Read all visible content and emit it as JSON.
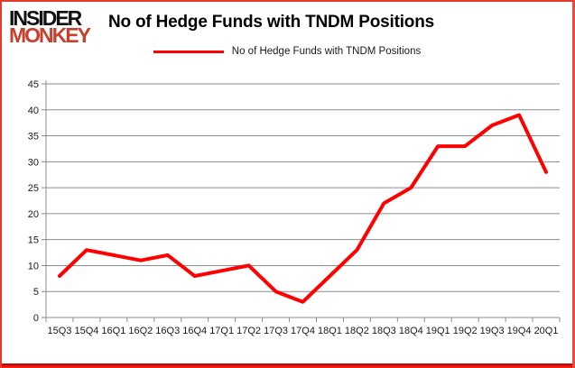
{
  "logo": {
    "line1": "INSIDER",
    "line2": "MONKEY",
    "line1_color": "#111111",
    "line2_color": "#c7402e"
  },
  "header": {
    "title": "No of Hedge Funds with TNDM Positions"
  },
  "legend": {
    "label": "No of Hedge Funds with TNDM Positions",
    "line_color": "#ff0000"
  },
  "colors": {
    "series_red": "#ff0000",
    "gridline_gray": "#8c8c8c",
    "axis_gray": "#8c8c8c",
    "frame_border_red": "#e23b2e",
    "background": "#ffffff"
  },
  "chart_data": {
    "type": "line",
    "title": "No of Hedge Funds with TNDM Positions",
    "categories": [
      "15Q3",
      "15Q4",
      "16Q1",
      "16Q2",
      "16Q3",
      "16Q4",
      "17Q1",
      "17Q2",
      "17Q3",
      "17Q4",
      "18Q1",
      "18Q2",
      "18Q3",
      "18Q4",
      "19Q1",
      "19Q2",
      "19Q3",
      "19Q4",
      "20Q1"
    ],
    "series": [
      {
        "name": "No of Hedge Funds with TNDM Positions",
        "color": "#ff0000",
        "values": [
          8,
          13,
          12,
          11,
          12,
          8,
          9,
          10,
          5,
          3,
          8,
          13,
          22,
          25,
          33,
          33,
          37,
          39,
          28
        ]
      }
    ],
    "xlabel": "",
    "ylabel": "",
    "ylim": [
      0,
      45
    ],
    "ytick_step": 5,
    "yticks": [
      0,
      5,
      10,
      15,
      20,
      25,
      30,
      35,
      40,
      45
    ],
    "grid": "horizontal",
    "legend_position": "top-center"
  }
}
